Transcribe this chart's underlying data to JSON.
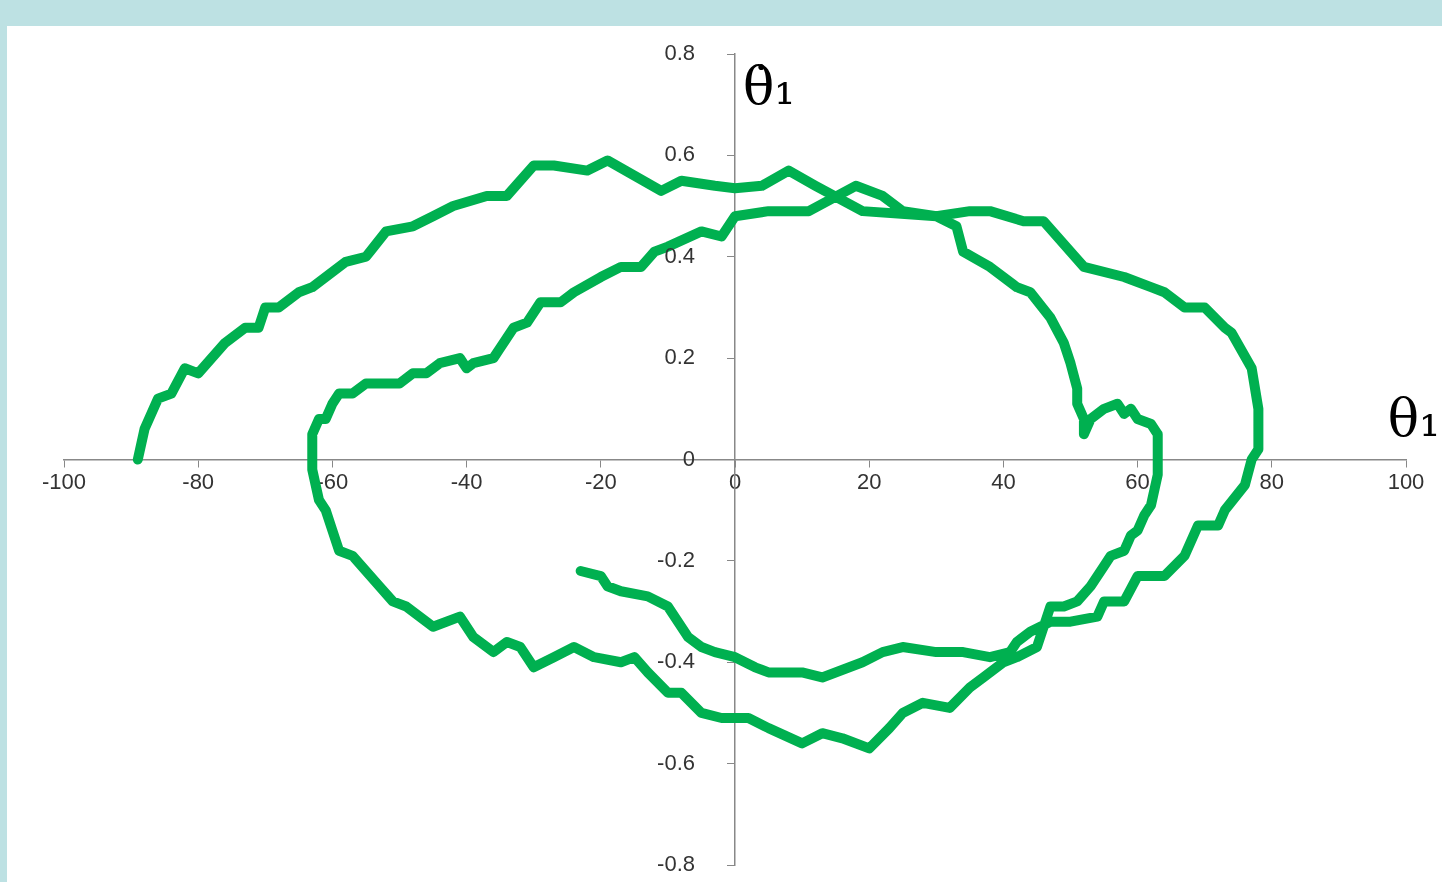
{
  "chart_data": {
    "type": "line",
    "xlabel": "θ₁",
    "ylabel": "θ̇₁",
    "xlim": [
      -100,
      100
    ],
    "xticks": [
      -100,
      -80,
      -60,
      -40,
      -20,
      0,
      20,
      40,
      60,
      80,
      100
    ],
    "ylim": [
      -0.8,
      0.8
    ],
    "yticks": [
      -0.8,
      -0.6,
      -0.4,
      -0.2,
      0,
      0.2,
      0.4,
      0.6,
      0.8
    ],
    "grid": false,
    "legend": false,
    "marker": "none",
    "line_style": "solid",
    "series": [
      {
        "color": "#00b050",
        "x": [
          -89,
          -88,
          -86,
          -84,
          -82,
          -80,
          -76,
          -73,
          -71,
          -70,
          -68,
          -65,
          -63,
          -58,
          -55,
          -52,
          -48,
          -45,
          -42,
          -37,
          -34,
          -30,
          -27,
          -22,
          -19,
          -15,
          -11,
          -8,
          -3,
          0,
          4,
          8,
          12,
          19,
          30,
          33,
          34,
          38,
          42,
          44,
          47,
          49,
          50,
          51,
          51,
          52,
          52,
          53,
          55,
          57,
          58,
          59,
          60,
          62,
          63,
          63,
          62,
          61,
          60,
          59,
          58,
          56,
          55,
          53,
          51,
          49,
          47,
          46,
          45,
          42,
          40,
          37,
          35,
          32,
          28,
          25,
          23,
          20,
          16,
          13,
          10,
          5,
          2,
          -2,
          -5,
          -8,
          -10,
          -13,
          -15,
          -17,
          -21,
          -24,
          -27,
          -30,
          -32,
          -34,
          -36,
          -39,
          -41,
          -45,
          -49,
          -51,
          -53,
          -55,
          -57,
          -59,
          -60,
          -61,
          -62,
          -63,
          -63,
          -63,
          -62,
          -61,
          -60,
          -59,
          -57,
          -55,
          -54,
          -52,
          -50,
          -48,
          -46,
          -44,
          -41,
          -40,
          -39,
          -36,
          -35,
          -33,
          -31,
          -29,
          -26,
          -24,
          -20,
          -17,
          -14,
          -12,
          -10,
          -5,
          -2,
          0,
          5,
          11,
          18,
          22,
          25,
          30,
          35,
          38,
          43,
          46,
          52,
          58,
          62,
          64,
          67,
          70,
          73,
          74,
          77,
          78,
          78,
          77,
          76,
          73,
          72,
          69,
          67,
          64,
          60,
          58,
          55,
          54,
          50,
          47,
          44,
          42,
          41,
          38,
          34,
          30,
          25,
          22,
          19,
          13,
          10,
          5,
          3,
          0,
          -3,
          -5,
          -7,
          -10,
          -13,
          -17,
          -19,
          -20,
          -23
        ],
        "values": [
          0,
          0.06,
          0.12,
          0.13,
          0.18,
          0.17,
          0.23,
          0.26,
          0.26,
          0.3,
          0.3,
          0.33,
          0.34,
          0.39,
          0.4,
          0.45,
          0.46,
          0.48,
          0.5,
          0.52,
          0.52,
          0.58,
          0.58,
          0.57,
          0.59,
          0.56,
          0.53,
          0.55,
          0.54,
          0.535,
          0.54,
          0.57,
          0.54,
          0.49,
          0.48,
          0.46,
          0.41,
          0.38,
          0.34,
          0.33,
          0.28,
          0.23,
          0.19,
          0.14,
          0.11,
          0.08,
          0.05,
          0.08,
          0.1,
          0.11,
          0.09,
          0.1,
          0.08,
          0.07,
          0.05,
          -0.03,
          -0.09,
          -0.11,
          -0.14,
          -0.15,
          -0.18,
          -0.19,
          -0.21,
          -0.25,
          -0.28,
          -0.29,
          -0.29,
          -0.33,
          -0.37,
          -0.39,
          -0.4,
          -0.43,
          -0.45,
          -0.49,
          -0.48,
          -0.5,
          -0.53,
          -0.57,
          -0.55,
          -0.54,
          -0.56,
          -0.53,
          -0.51,
          -0.51,
          -0.5,
          -0.46,
          -0.46,
          -0.42,
          -0.39,
          -0.4,
          -0.39,
          -0.37,
          -0.39,
          -0.41,
          -0.37,
          -0.36,
          -0.38,
          -0.35,
          -0.31,
          -0.33,
          -0.29,
          -0.28,
          -0.25,
          -0.22,
          -0.19,
          -0.18,
          -0.14,
          -0.1,
          -0.08,
          -0.02,
          0.05,
          0.05,
          0.08,
          0.08,
          0.11,
          0.13,
          0.13,
          0.15,
          0.15,
          0.15,
          0.15,
          0.17,
          0.17,
          0.19,
          0.2,
          0.18,
          0.19,
          0.2,
          0.22,
          0.26,
          0.27,
          0.31,
          0.31,
          0.33,
          0.36,
          0.38,
          0.38,
          0.41,
          0.42,
          0.45,
          0.44,
          0.48,
          0.49,
          0.49,
          0.54,
          0.52,
          0.49,
          0.48,
          0.49,
          0.49,
          0.47,
          0.47,
          0.38,
          0.36,
          0.34,
          0.33,
          0.3,
          0.3,
          0.26,
          0.25,
          0.18,
          0.1,
          0.02,
          0,
          -0.05,
          -0.1,
          -0.13,
          -0.13,
          -0.19,
          -0.23,
          -0.23,
          -0.28,
          -0.28,
          -0.31,
          -0.32,
          -0.32,
          -0.34,
          -0.36,
          -0.38,
          -0.39,
          -0.38,
          -0.38,
          -0.37,
          -0.38,
          -0.4,
          -0.43,
          -0.42,
          -0.42,
          -0.41,
          -0.39,
          -0.38,
          -0.37,
          -0.35,
          -0.29,
          -0.27,
          -0.26,
          -0.25,
          -0.23,
          -0.22
        ]
      }
    ]
  }
}
